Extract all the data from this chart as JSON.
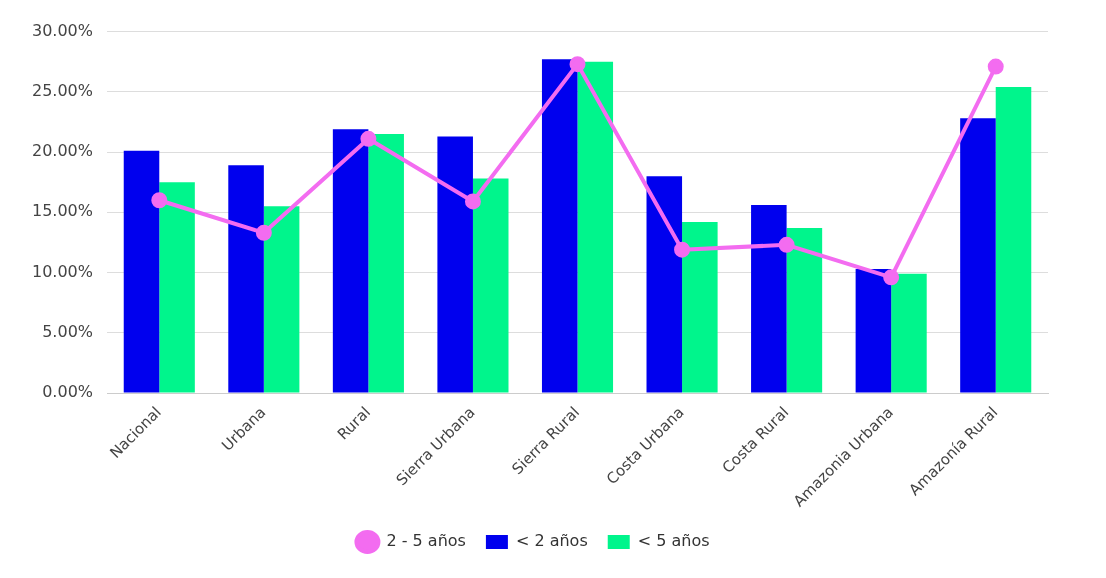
{
  "chart_data": {
    "type": "bar",
    "categories": [
      "Nacional",
      "Urbana",
      "Rural",
      "Sierra Urbana",
      "Sierra Rural",
      "Costa Urbana",
      "Costa Rural",
      "Amazonia Urbana",
      "Amazonía Rural"
    ],
    "series": [
      {
        "name": "< 2 años",
        "color": "#0000ee",
        "values": [
          20.1,
          18.9,
          21.9,
          21.3,
          27.7,
          18.0,
          15.6,
          10.3,
          22.8
        ]
      },
      {
        "name": "< 5 años",
        "color": "#00f58c",
        "values": [
          17.5,
          15.5,
          21.5,
          17.8,
          27.5,
          14.2,
          13.7,
          9.9,
          25.4
        ]
      },
      {
        "name": "2 - 5 años",
        "type": "line",
        "color": "#f36cf0",
        "marker": "circle",
        "values": [
          16.0,
          13.3,
          21.1,
          15.9,
          27.3,
          11.9,
          12.3,
          9.6,
          27.1
        ]
      }
    ],
    "ylim": [
      0,
      30
    ],
    "yticks": [
      {
        "value": 0,
        "label": "0.00%"
      },
      {
        "value": 5,
        "label": "5.00%"
      },
      {
        "value": 10,
        "label": "10.00%"
      },
      {
        "value": 15,
        "label": "15.00%"
      },
      {
        "value": 20,
        "label": "20.00%"
      },
      {
        "value": 25,
        "label": "25.00%"
      },
      {
        "value": 30,
        "label": "30.00%"
      }
    ],
    "grid": "y",
    "legend": "bottom"
  }
}
